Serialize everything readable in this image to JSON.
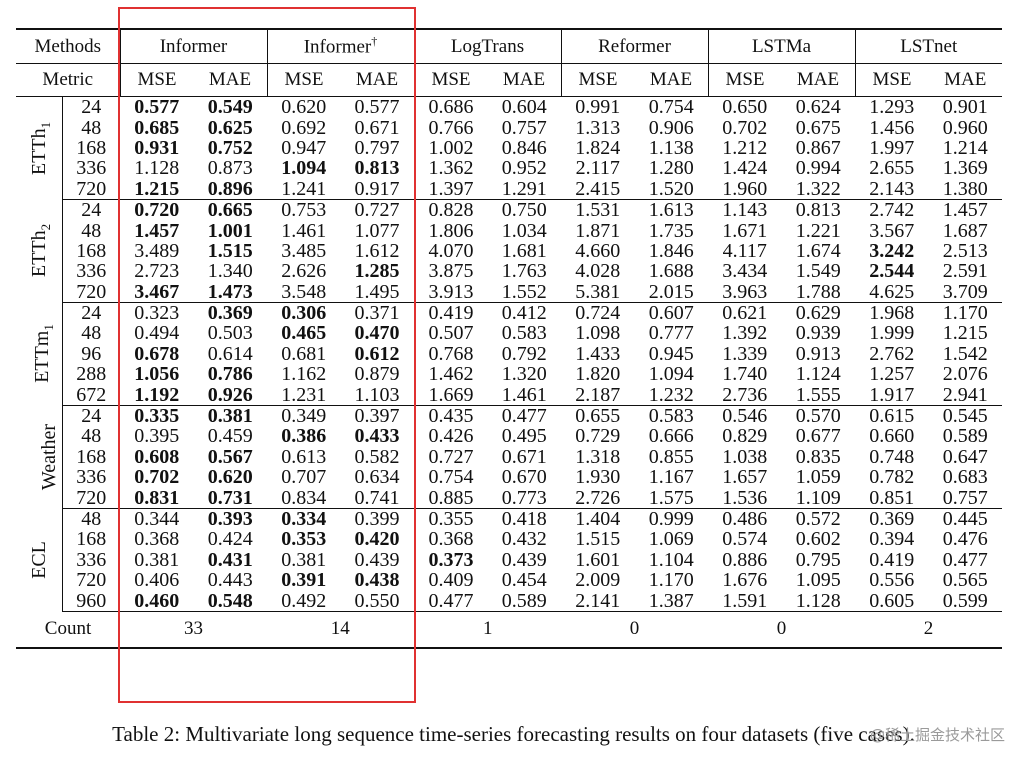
{
  "table": {
    "header_methods": "Methods",
    "header_metric": "Metric",
    "methods": [
      "Informer",
      "Informer",
      "LogTrans",
      "Reformer",
      "LSTMa",
      "LSTnet"
    ],
    "method_marks": [
      "",
      "†",
      "",
      "",
      "",
      ""
    ],
    "metrics": [
      "MSE",
      "MAE",
      "MSE",
      "MAE",
      "MSE",
      "MAE",
      "MSE",
      "MAE",
      "MSE",
      "MAE",
      "MSE",
      "MAE"
    ],
    "datasets": [
      {
        "name": "ETTh",
        "sub": "1",
        "rows": [
          {
            "h": "24",
            "v": [
              "0.577",
              "0.549",
              "0.620",
              "0.577",
              "0.686",
              "0.604",
              "0.991",
              "0.754",
              "0.650",
              "0.624",
              "1.293",
              "0.901"
            ],
            "b": [
              1,
              1,
              0,
              0,
              0,
              0,
              0,
              0,
              0,
              0,
              0,
              0
            ]
          },
          {
            "h": "48",
            "v": [
              "0.685",
              "0.625",
              "0.692",
              "0.671",
              "0.766",
              "0.757",
              "1.313",
              "0.906",
              "0.702",
              "0.675",
              "1.456",
              "0.960"
            ],
            "b": [
              1,
              1,
              0,
              0,
              0,
              0,
              0,
              0,
              0,
              0,
              0,
              0
            ]
          },
          {
            "h": "168",
            "v": [
              "0.931",
              "0.752",
              "0.947",
              "0.797",
              "1.002",
              "0.846",
              "1.824",
              "1.138",
              "1.212",
              "0.867",
              "1.997",
              "1.214"
            ],
            "b": [
              1,
              1,
              0,
              0,
              0,
              0,
              0,
              0,
              0,
              0,
              0,
              0
            ]
          },
          {
            "h": "336",
            "v": [
              "1.128",
              "0.873",
              "1.094",
              "0.813",
              "1.362",
              "0.952",
              "2.117",
              "1.280",
              "1.424",
              "0.994",
              "2.655",
              "1.369"
            ],
            "b": [
              0,
              0,
              1,
              1,
              0,
              0,
              0,
              0,
              0,
              0,
              0,
              0
            ]
          },
          {
            "h": "720",
            "v": [
              "1.215",
              "0.896",
              "1.241",
              "0.917",
              "1.397",
              "1.291",
              "2.415",
              "1.520",
              "1.960",
              "1.322",
              "2.143",
              "1.380"
            ],
            "b": [
              1,
              1,
              0,
              0,
              0,
              0,
              0,
              0,
              0,
              0,
              0,
              0
            ]
          }
        ]
      },
      {
        "name": "ETTh",
        "sub": "2",
        "rows": [
          {
            "h": "24",
            "v": [
              "0.720",
              "0.665",
              "0.753",
              "0.727",
              "0.828",
              "0.750",
              "1.531",
              "1.613",
              "1.143",
              "0.813",
              "2.742",
              "1.457"
            ],
            "b": [
              1,
              1,
              0,
              0,
              0,
              0,
              0,
              0,
              0,
              0,
              0,
              0
            ]
          },
          {
            "h": "48",
            "v": [
              "1.457",
              "1.001",
              "1.461",
              "1.077",
              "1.806",
              "1.034",
              "1.871",
              "1.735",
              "1.671",
              "1.221",
              "3.567",
              "1.687"
            ],
            "b": [
              1,
              1,
              0,
              0,
              0,
              0,
              0,
              0,
              0,
              0,
              0,
              0
            ]
          },
          {
            "h": "168",
            "v": [
              "3.489",
              "1.515",
              "3.485",
              "1.612",
              "4.070",
              "1.681",
              "4.660",
              "1.846",
              "4.117",
              "1.674",
              "3.242",
              "2.513"
            ],
            "b": [
              0,
              1,
              0,
              0,
              0,
              0,
              0,
              0,
              0,
              0,
              1,
              0
            ]
          },
          {
            "h": "336",
            "v": [
              "2.723",
              "1.340",
              "2.626",
              "1.285",
              "3.875",
              "1.763",
              "4.028",
              "1.688",
              "3.434",
              "1.549",
              "2.544",
              "2.591"
            ],
            "b": [
              0,
              0,
              0,
              1,
              0,
              0,
              0,
              0,
              0,
              0,
              1,
              0
            ]
          },
          {
            "h": "720",
            "v": [
              "3.467",
              "1.473",
              "3.548",
              "1.495",
              "3.913",
              "1.552",
              "5.381",
              "2.015",
              "3.963",
              "1.788",
              "4.625",
              "3.709"
            ],
            "b": [
              1,
              1,
              0,
              0,
              0,
              0,
              0,
              0,
              0,
              0,
              0,
              0
            ]
          }
        ]
      },
      {
        "name": "ETTm",
        "sub": "1",
        "rows": [
          {
            "h": "24",
            "v": [
              "0.323",
              "0.369",
              "0.306",
              "0.371",
              "0.419",
              "0.412",
              "0.724",
              "0.607",
              "0.621",
              "0.629",
              "1.968",
              "1.170"
            ],
            "b": [
              0,
              1,
              1,
              0,
              0,
              0,
              0,
              0,
              0,
              0,
              0,
              0
            ]
          },
          {
            "h": "48",
            "v": [
              "0.494",
              "0.503",
              "0.465",
              "0.470",
              "0.507",
              "0.583",
              "1.098",
              "0.777",
              "1.392",
              "0.939",
              "1.999",
              "1.215"
            ],
            "b": [
              0,
              0,
              1,
              1,
              0,
              0,
              0,
              0,
              0,
              0,
              0,
              0
            ]
          },
          {
            "h": "96",
            "v": [
              "0.678",
              "0.614",
              "0.681",
              "0.612",
              "0.768",
              "0.792",
              "1.433",
              "0.945",
              "1.339",
              "0.913",
              "2.762",
              "1.542"
            ],
            "b": [
              1,
              0,
              0,
              1,
              0,
              0,
              0,
              0,
              0,
              0,
              0,
              0
            ]
          },
          {
            "h": "288",
            "v": [
              "1.056",
              "0.786",
              "1.162",
              "0.879",
              "1.462",
              "1.320",
              "1.820",
              "1.094",
              "1.740",
              "1.124",
              "1.257",
              "2.076"
            ],
            "b": [
              1,
              1,
              0,
              0,
              0,
              0,
              0,
              0,
              0,
              0,
              0,
              0
            ]
          },
          {
            "h": "672",
            "v": [
              "1.192",
              "0.926",
              "1.231",
              "1.103",
              "1.669",
              "1.461",
              "2.187",
              "1.232",
              "2.736",
              "1.555",
              "1.917",
              "2.941"
            ],
            "b": [
              1,
              1,
              0,
              0,
              0,
              0,
              0,
              0,
              0,
              0,
              0,
              0
            ]
          }
        ]
      },
      {
        "name": "Weather",
        "sub": "",
        "rows": [
          {
            "h": "24",
            "v": [
              "0.335",
              "0.381",
              "0.349",
              "0.397",
              "0.435",
              "0.477",
              "0.655",
              "0.583",
              "0.546",
              "0.570",
              "0.615",
              "0.545"
            ],
            "b": [
              1,
              1,
              0,
              0,
              0,
              0,
              0,
              0,
              0,
              0,
              0,
              0
            ]
          },
          {
            "h": "48",
            "v": [
              "0.395",
              "0.459",
              "0.386",
              "0.433",
              "0.426",
              "0.495",
              "0.729",
              "0.666",
              "0.829",
              "0.677",
              "0.660",
              "0.589"
            ],
            "b": [
              0,
              0,
              1,
              1,
              0,
              0,
              0,
              0,
              0,
              0,
              0,
              0
            ]
          },
          {
            "h": "168",
            "v": [
              "0.608",
              "0.567",
              "0.613",
              "0.582",
              "0.727",
              "0.671",
              "1.318",
              "0.855",
              "1.038",
              "0.835",
              "0.748",
              "0.647"
            ],
            "b": [
              1,
              1,
              0,
              0,
              0,
              0,
              0,
              0,
              0,
              0,
              0,
              0
            ]
          },
          {
            "h": "336",
            "v": [
              "0.702",
              "0.620",
              "0.707",
              "0.634",
              "0.754",
              "0.670",
              "1.930",
              "1.167",
              "1.657",
              "1.059",
              "0.782",
              "0.683"
            ],
            "b": [
              1,
              1,
              0,
              0,
              0,
              0,
              0,
              0,
              0,
              0,
              0,
              0
            ]
          },
          {
            "h": "720",
            "v": [
              "0.831",
              "0.731",
              "0.834",
              "0.741",
              "0.885",
              "0.773",
              "2.726",
              "1.575",
              "1.536",
              "1.109",
              "0.851",
              "0.757"
            ],
            "b": [
              1,
              1,
              0,
              0,
              0,
              0,
              0,
              0,
              0,
              0,
              0,
              0
            ]
          }
        ]
      },
      {
        "name": "ECL",
        "sub": "",
        "rows": [
          {
            "h": "48",
            "v": [
              "0.344",
              "0.393",
              "0.334",
              "0.399",
              "0.355",
              "0.418",
              "1.404",
              "0.999",
              "0.486",
              "0.572",
              "0.369",
              "0.445"
            ],
            "b": [
              0,
              1,
              1,
              0,
              0,
              0,
              0,
              0,
              0,
              0,
              0,
              0
            ]
          },
          {
            "h": "168",
            "v": [
              "0.368",
              "0.424",
              "0.353",
              "0.420",
              "0.368",
              "0.432",
              "1.515",
              "1.069",
              "0.574",
              "0.602",
              "0.394",
              "0.476"
            ],
            "b": [
              0,
              0,
              1,
              1,
              0,
              0,
              0,
              0,
              0,
              0,
              0,
              0
            ]
          },
          {
            "h": "336",
            "v": [
              "0.381",
              "0.431",
              "0.381",
              "0.439",
              "0.373",
              "0.439",
              "1.601",
              "1.104",
              "0.886",
              "0.795",
              "0.419",
              "0.477"
            ],
            "b": [
              0,
              1,
              0,
              0,
              1,
              0,
              0,
              0,
              0,
              0,
              0,
              0
            ]
          },
          {
            "h": "720",
            "v": [
              "0.406",
              "0.443",
              "0.391",
              "0.438",
              "0.409",
              "0.454",
              "2.009",
              "1.170",
              "1.676",
              "1.095",
              "0.556",
              "0.565"
            ],
            "b": [
              0,
              0,
              1,
              1,
              0,
              0,
              0,
              0,
              0,
              0,
              0,
              0
            ]
          },
          {
            "h": "960",
            "v": [
              "0.460",
              "0.548",
              "0.492",
              "0.550",
              "0.477",
              "0.589",
              "2.141",
              "1.387",
              "1.591",
              "1.128",
              "0.605",
              "0.599"
            ],
            "b": [
              1,
              1,
              0,
              0,
              0,
              0,
              0,
              0,
              0,
              0,
              0,
              0
            ]
          }
        ]
      }
    ],
    "count_label": "Count",
    "counts": [
      "33",
      "14",
      "1",
      "0",
      "0",
      "2"
    ]
  },
  "caption": "Table 2: Multivariate long sequence time-series forecasting results on four datasets (five cases).",
  "watermark": "@稀土掘金技术社区",
  "colors": {
    "highlight_box": "#e03131",
    "text": "#111111"
  }
}
